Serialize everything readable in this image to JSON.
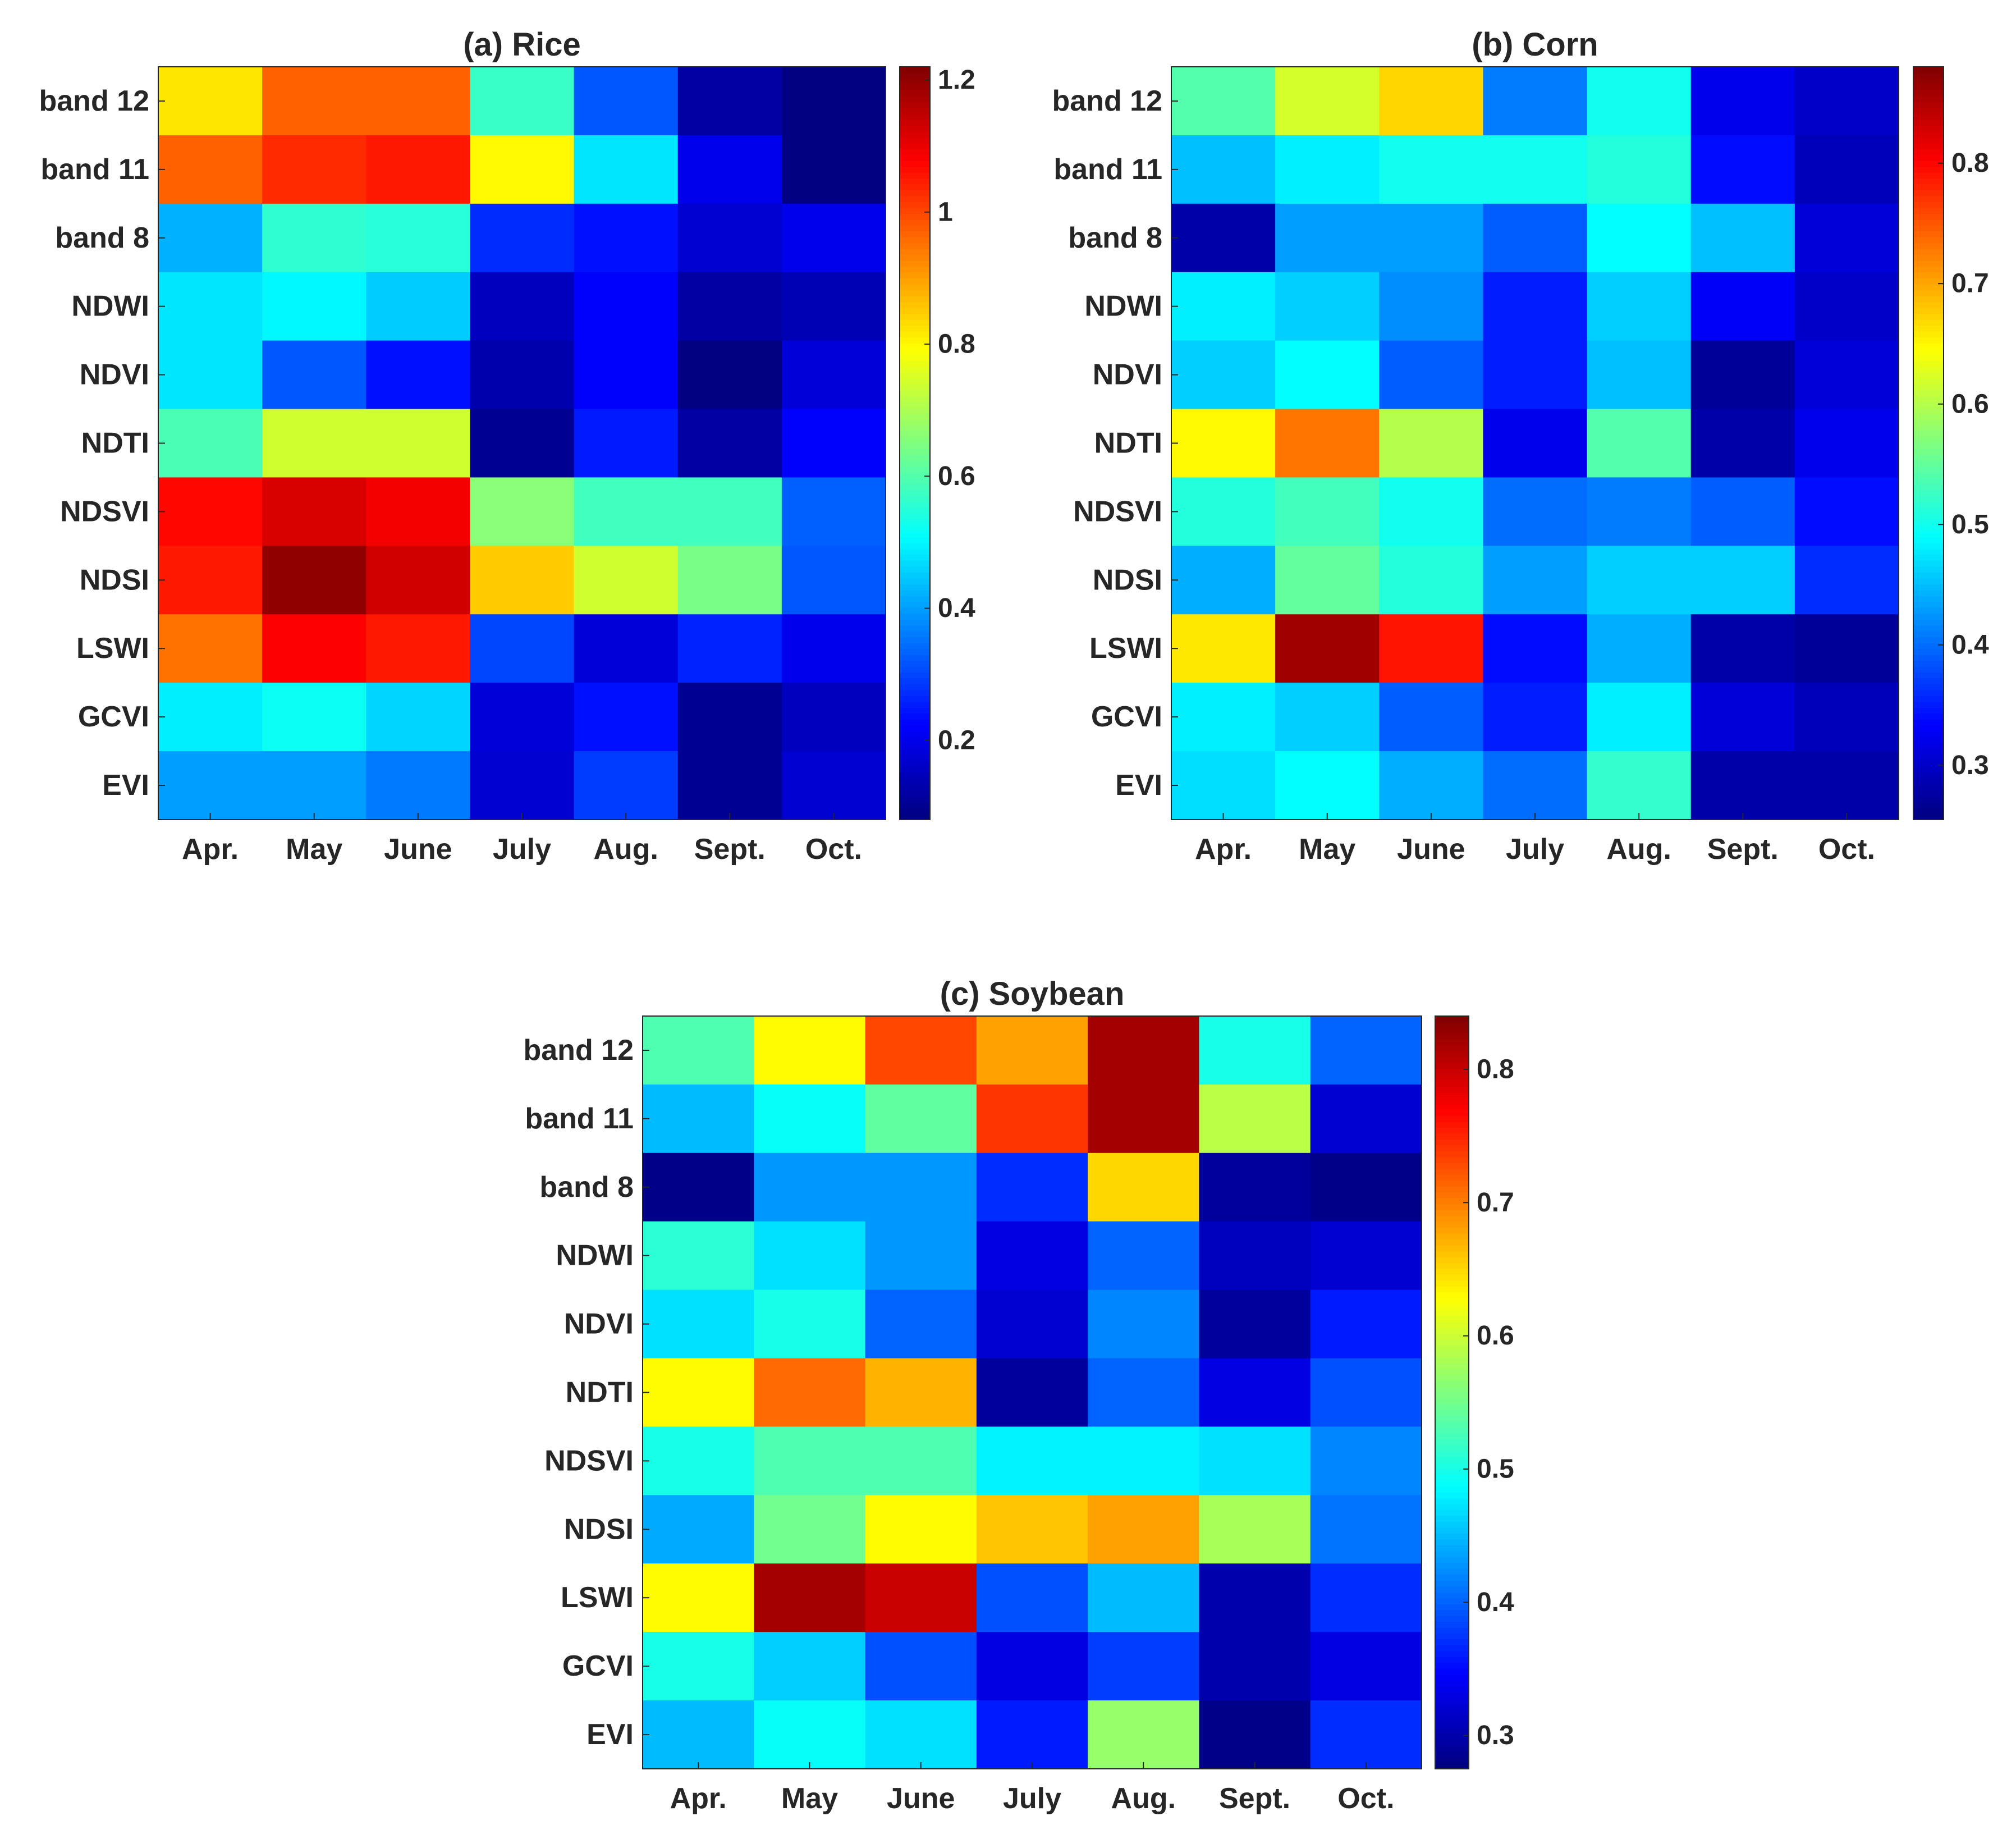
{
  "chart_data": [
    {
      "type": "heatmap",
      "title": "(a) Rice",
      "rows": [
        "band 12",
        "band 11",
        "band 8",
        "NDWI",
        "NDVI",
        "NDTI",
        "NDSVI",
        "NDSI",
        "LSWI",
        "GCVI",
        "EVI"
      ],
      "columns": [
        "Apr.",
        "May",
        "June",
        "July",
        "Aug.",
        "Sept.",
        "Oct."
      ],
      "values": [
        [
          0.82,
          0.97,
          0.97,
          0.57,
          0.32,
          0.12,
          0.08
        ],
        [
          0.97,
          1.03,
          1.05,
          0.8,
          0.48,
          0.2,
          0.04
        ],
        [
          0.42,
          0.56,
          0.55,
          0.27,
          0.24,
          0.17,
          0.2
        ],
        [
          0.48,
          0.5,
          0.45,
          0.15,
          0.22,
          0.12,
          0.14
        ],
        [
          0.48,
          0.32,
          0.24,
          0.13,
          0.22,
          0.08,
          0.18
        ],
        [
          0.59,
          0.74,
          0.74,
          0.1,
          0.25,
          0.12,
          0.22
        ],
        [
          1.07,
          1.12,
          1.09,
          0.66,
          0.58,
          0.58,
          0.33
        ],
        [
          1.05,
          1.2,
          1.13,
          0.85,
          0.74,
          0.64,
          0.32
        ],
        [
          0.95,
          1.08,
          1.05,
          0.3,
          0.18,
          0.26,
          0.2
        ],
        [
          0.49,
          0.52,
          0.46,
          0.18,
          0.24,
          0.1,
          0.15
        ],
        [
          0.4,
          0.4,
          0.36,
          0.17,
          0.29,
          0.1,
          0.17
        ]
      ],
      "colorbar": {
        "min": 0.08,
        "max": 1.22,
        "ticks": [
          0.2,
          0.4,
          0.6,
          0.8,
          1,
          1.2
        ],
        "tick_labels": [
          "0.2",
          "0.4",
          "0.6",
          "0.8",
          "1",
          "1.2"
        ]
      }
    },
    {
      "type": "heatmap",
      "title": "(b) Corn",
      "rows": [
        "band 12",
        "band 11",
        "band 8",
        "NDWI",
        "NDVI",
        "NDTI",
        "NDSVI",
        "NDSI",
        "LSWI",
        "GCVI",
        "EVI"
      ],
      "columns": [
        "Apr.",
        "May",
        "June",
        "July",
        "Aug.",
        "Sept.",
        "Oct."
      ],
      "values": [
        [
          0.54,
          0.62,
          0.67,
          0.41,
          0.5,
          0.32,
          0.3
        ],
        [
          0.45,
          0.48,
          0.5,
          0.5,
          0.51,
          0.34,
          0.29
        ],
        [
          0.28,
          0.43,
          0.43,
          0.39,
          0.49,
          0.45,
          0.31
        ],
        [
          0.48,
          0.46,
          0.42,
          0.35,
          0.46,
          0.33,
          0.3
        ],
        [
          0.46,
          0.49,
          0.39,
          0.35,
          0.45,
          0.27,
          0.31
        ],
        [
          0.65,
          0.73,
          0.6,
          0.32,
          0.54,
          0.28,
          0.32
        ],
        [
          0.51,
          0.53,
          0.5,
          0.4,
          0.41,
          0.39,
          0.34
        ],
        [
          0.44,
          0.55,
          0.51,
          0.43,
          0.46,
          0.46,
          0.36
        ],
        [
          0.66,
          0.86,
          0.79,
          0.34,
          0.44,
          0.28,
          0.27
        ],
        [
          0.48,
          0.46,
          0.39,
          0.35,
          0.48,
          0.31,
          0.29
        ],
        [
          0.47,
          0.49,
          0.44,
          0.4,
          0.52,
          0.28,
          0.28
        ]
      ],
      "colorbar": {
        "min": 0.255,
        "max": 0.88,
        "ticks": [
          0.3,
          0.4,
          0.5,
          0.6,
          0.7,
          0.8
        ],
        "tick_labels": [
          "0.3",
          "0.4",
          "0.5",
          "0.6",
          "0.7",
          "0.8"
        ]
      }
    },
    {
      "type": "heatmap",
      "title": "(c) Soybean",
      "rows": [
        "band 12",
        "band 11",
        "band 8",
        "NDWI",
        "NDVI",
        "NDTI",
        "NDSVI",
        "NDSI",
        "LSWI",
        "GCVI",
        "EVI"
      ],
      "columns": [
        "Apr.",
        "May",
        "June",
        "July",
        "Aug.",
        "Sept.",
        "Oct."
      ],
      "values": [
        [
          0.53,
          0.63,
          0.73,
          0.68,
          0.82,
          0.5,
          0.4
        ],
        [
          0.45,
          0.49,
          0.54,
          0.74,
          0.82,
          0.59,
          0.32
        ],
        [
          0.28,
          0.43,
          0.43,
          0.37,
          0.65,
          0.29,
          0.28
        ],
        [
          0.51,
          0.47,
          0.43,
          0.33,
          0.4,
          0.31,
          0.32
        ],
        [
          0.47,
          0.5,
          0.4,
          0.32,
          0.42,
          0.29,
          0.36
        ],
        [
          0.63,
          0.71,
          0.67,
          0.29,
          0.4,
          0.33,
          0.39
        ],
        [
          0.5,
          0.53,
          0.53,
          0.48,
          0.48,
          0.47,
          0.42
        ],
        [
          0.44,
          0.55,
          0.63,
          0.66,
          0.68,
          0.58,
          0.41
        ],
        [
          0.63,
          0.82,
          0.8,
          0.39,
          0.45,
          0.3,
          0.37
        ],
        [
          0.5,
          0.46,
          0.39,
          0.33,
          0.38,
          0.3,
          0.33
        ],
        [
          0.45,
          0.49,
          0.47,
          0.36,
          0.57,
          0.28,
          0.37
        ]
      ],
      "colorbar": {
        "min": 0.275,
        "max": 0.84,
        "ticks": [
          0.3,
          0.4,
          0.5,
          0.6,
          0.7,
          0.8
        ],
        "tick_labels": [
          "0.3",
          "0.4",
          "0.5",
          "0.6",
          "0.7",
          "0.8"
        ]
      }
    }
  ]
}
